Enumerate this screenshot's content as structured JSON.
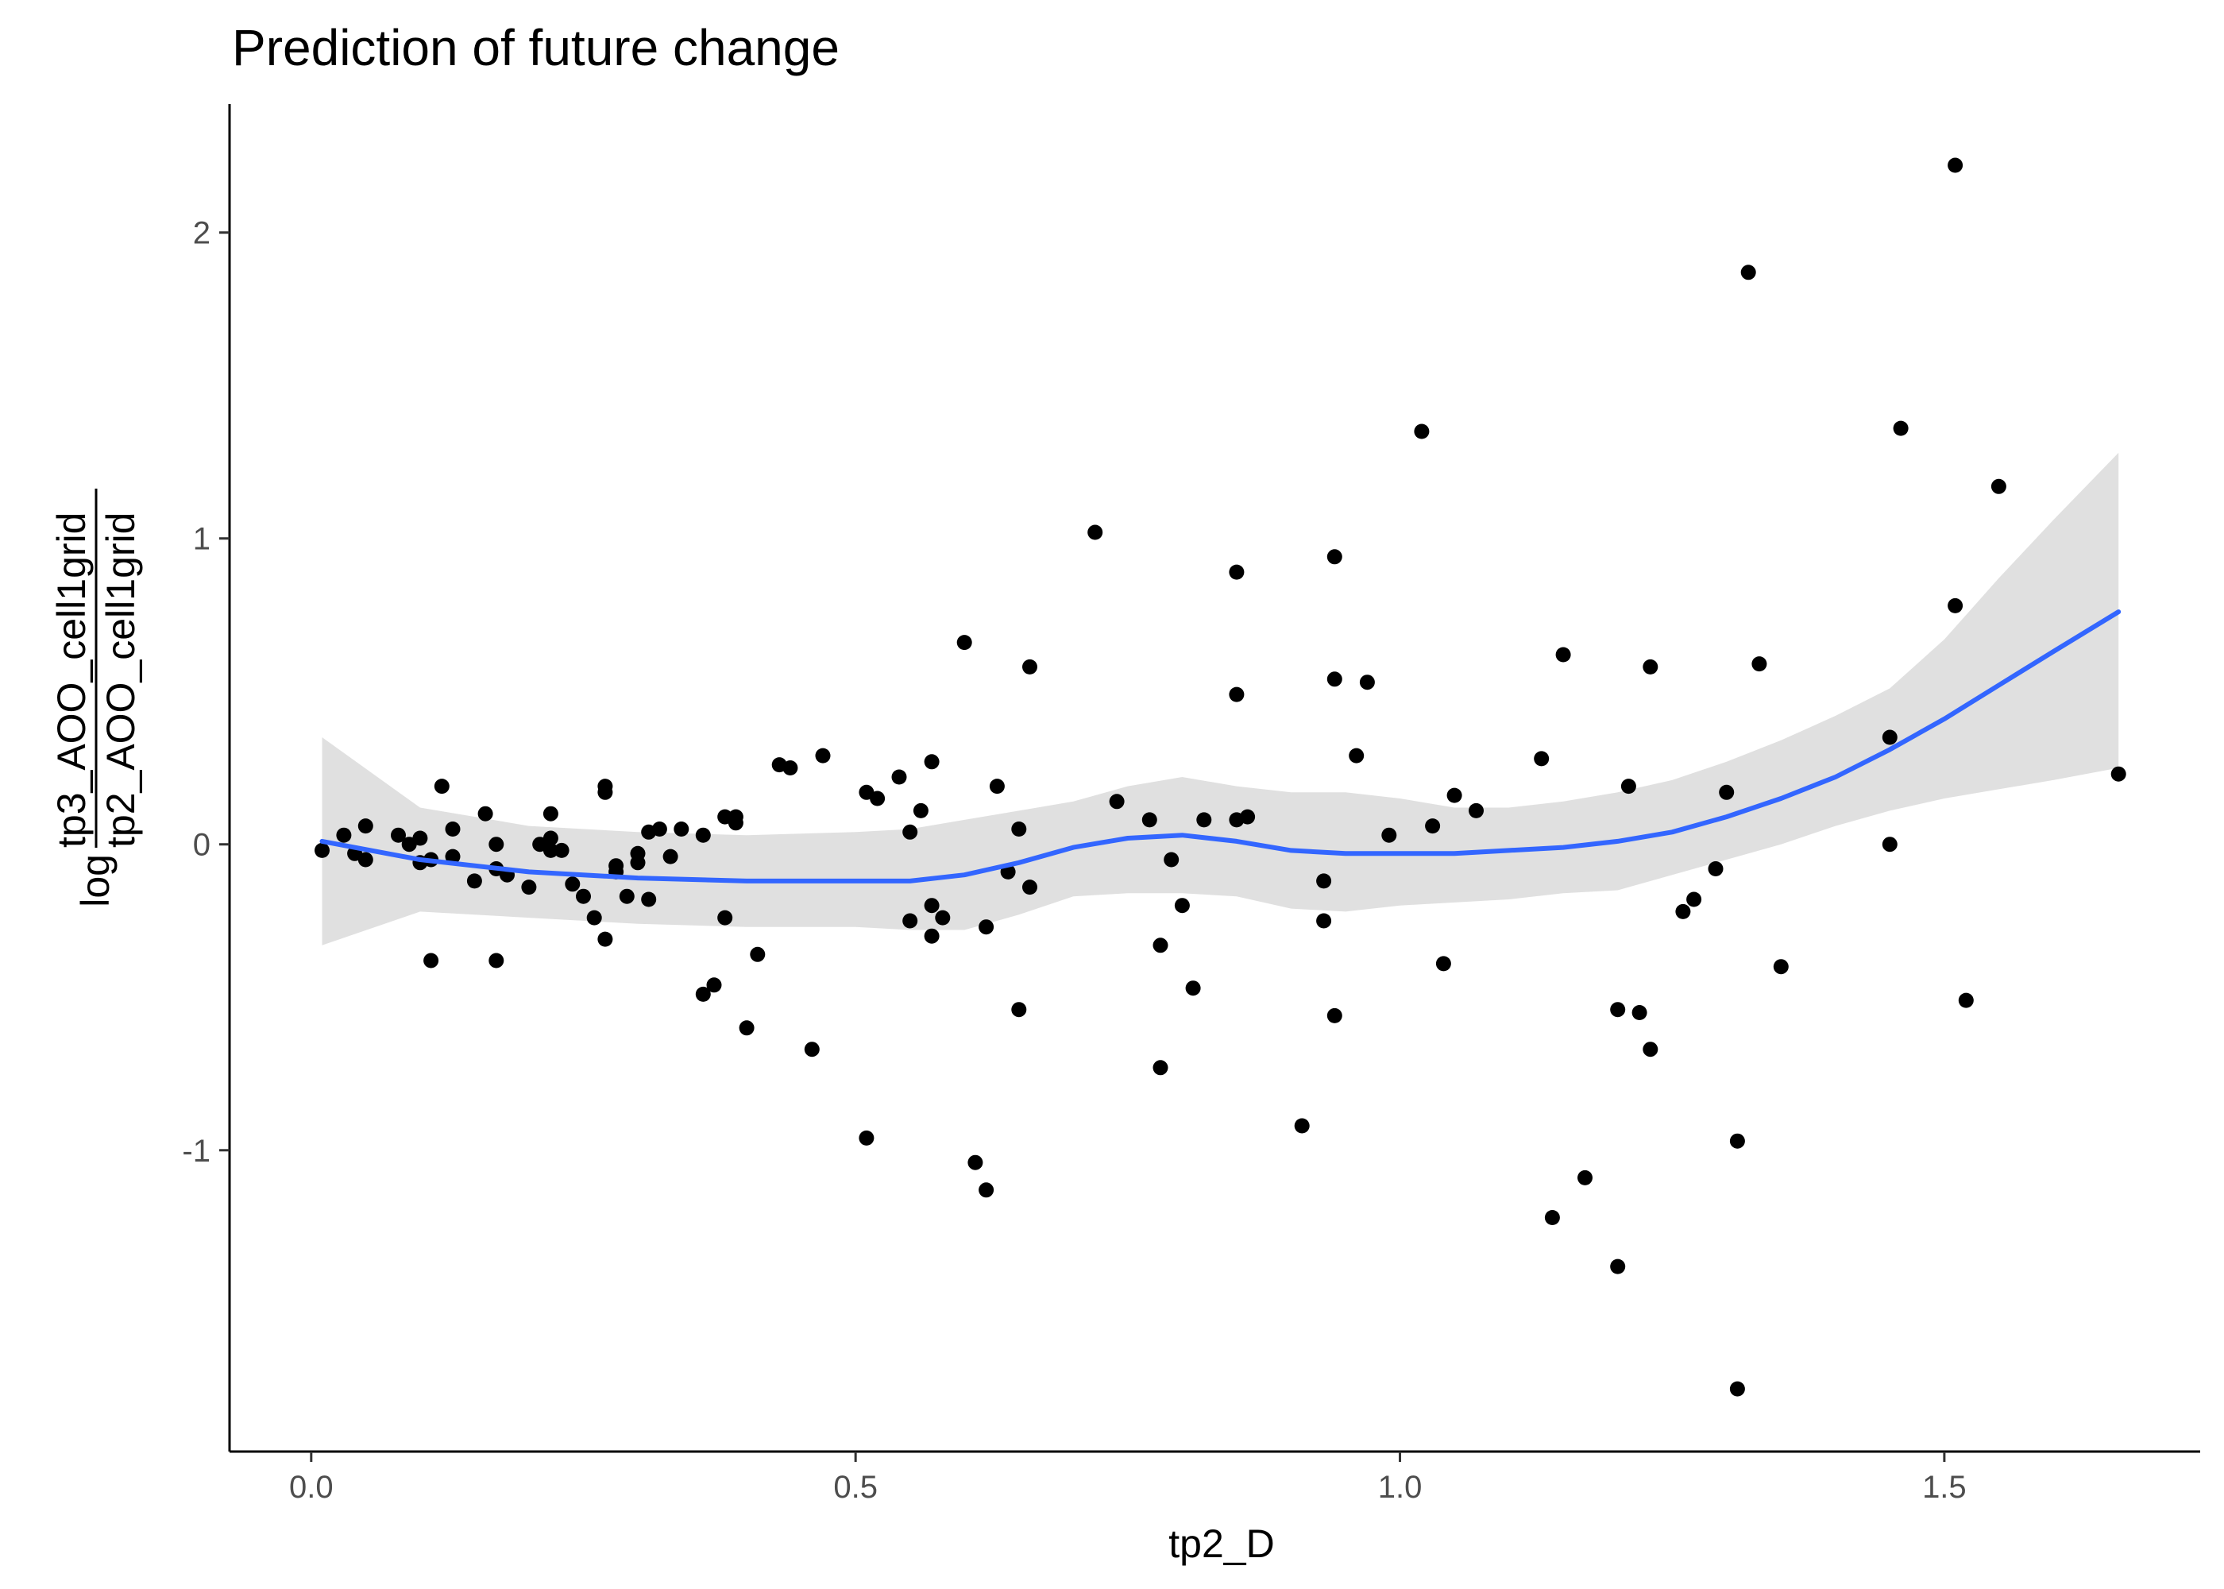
{
  "chart_data": {
    "type": "scatter",
    "title": "Prediction of future change",
    "xlabel": "tp2_D",
    "ylabel": {
      "prefix": "log",
      "numerator": "tp3_AOO_cell1grid",
      "denominator": "tp2_AOO_cell1grid"
    },
    "xlim": [
      -0.075,
      1.735
    ],
    "ylim": [
      -1.985,
      2.42
    ],
    "x_ticks": [
      0.0,
      0.5,
      1.0,
      1.5
    ],
    "x_tick_labels": [
      "0.0",
      "0.5",
      "1.0",
      "1.5"
    ],
    "y_ticks": [
      -1,
      0,
      1,
      2
    ],
    "y_tick_labels": [
      "-1",
      "0",
      "1",
      "2"
    ],
    "grid": false,
    "legend": "none",
    "colors": {
      "points": "#000000",
      "smooth_line": "#3366ff",
      "confidence_band": "#cccccc",
      "axis": "#000000",
      "tick_label": "#4d4d4d"
    },
    "points": [
      [
        0.01,
        -0.02
      ],
      [
        0.03,
        0.03
      ],
      [
        0.04,
        -0.03
      ],
      [
        0.05,
        0.06
      ],
      [
        0.05,
        -0.05
      ],
      [
        0.08,
        0.03
      ],
      [
        0.09,
        0.0
      ],
      [
        0.1,
        -0.06
      ],
      [
        0.1,
        0.02
      ],
      [
        0.11,
        -0.05
      ],
      [
        0.11,
        -0.38
      ],
      [
        0.12,
        0.19
      ],
      [
        0.13,
        -0.04
      ],
      [
        0.13,
        0.05
      ],
      [
        0.15,
        -0.12
      ],
      [
        0.16,
        0.1
      ],
      [
        0.17,
        -0.08
      ],
      [
        0.17,
        0.0
      ],
      [
        0.17,
        -0.38
      ],
      [
        0.18,
        -0.1
      ],
      [
        0.2,
        -0.14
      ],
      [
        0.21,
        0.0
      ],
      [
        0.22,
        -0.02
      ],
      [
        0.22,
        0.02
      ],
      [
        0.22,
        0.1
      ],
      [
        0.23,
        -0.02
      ],
      [
        0.24,
        -0.13
      ],
      [
        0.25,
        -0.17
      ],
      [
        0.26,
        -0.24
      ],
      [
        0.27,
        0.17
      ],
      [
        0.27,
        0.19
      ],
      [
        0.27,
        -0.31
      ],
      [
        0.28,
        -0.09
      ],
      [
        0.28,
        -0.07
      ],
      [
        0.29,
        -0.17
      ],
      [
        0.3,
        -0.06
      ],
      [
        0.3,
        -0.03
      ],
      [
        0.31,
        0.04
      ],
      [
        0.31,
        -0.18
      ],
      [
        0.32,
        0.05
      ],
      [
        0.33,
        -0.04
      ],
      [
        0.34,
        0.05
      ],
      [
        0.36,
        0.03
      ],
      [
        0.36,
        -0.49
      ],
      [
        0.37,
        -0.46
      ],
      [
        0.38,
        -0.24
      ],
      [
        0.38,
        0.09
      ],
      [
        0.39,
        0.07
      ],
      [
        0.39,
        0.09
      ],
      [
        0.4,
        -0.6
      ],
      [
        0.41,
        -0.36
      ],
      [
        0.43,
        0.26
      ],
      [
        0.44,
        0.25
      ],
      [
        0.46,
        -0.67
      ],
      [
        0.47,
        0.29
      ],
      [
        0.51,
        0.17
      ],
      [
        0.51,
        -0.96
      ],
      [
        0.52,
        0.15
      ],
      [
        0.54,
        0.22
      ],
      [
        0.55,
        -0.25
      ],
      [
        0.55,
        0.04
      ],
      [
        0.56,
        0.11
      ],
      [
        0.57,
        -0.3
      ],
      [
        0.57,
        0.27
      ],
      [
        0.57,
        -0.2
      ],
      [
        0.58,
        -0.24
      ],
      [
        0.6,
        0.66
      ],
      [
        0.61,
        -1.04
      ],
      [
        0.62,
        -0.27
      ],
      [
        0.62,
        -1.13
      ],
      [
        0.63,
        0.19
      ],
      [
        0.64,
        -0.09
      ],
      [
        0.65,
        -0.54
      ],
      [
        0.65,
        0.05
      ],
      [
        0.66,
        -0.14
      ],
      [
        0.66,
        0.58
      ],
      [
        0.72,
        1.02
      ],
      [
        0.74,
        0.14
      ],
      [
        0.77,
        0.08
      ],
      [
        0.78,
        -0.33
      ],
      [
        0.78,
        -0.73
      ],
      [
        0.79,
        -0.05
      ],
      [
        0.8,
        -0.2
      ],
      [
        0.81,
        -0.47
      ],
      [
        0.82,
        0.08
      ],
      [
        0.85,
        0.49
      ],
      [
        0.85,
        0.08
      ],
      [
        0.85,
        0.89
      ],
      [
        0.86,
        0.09
      ],
      [
        0.91,
        -0.92
      ],
      [
        0.93,
        -0.12
      ],
      [
        0.93,
        -0.25
      ],
      [
        0.94,
        -0.56
      ],
      [
        0.94,
        0.54
      ],
      [
        0.94,
        0.94
      ],
      [
        0.97,
        0.53
      ],
      [
        0.96,
        0.29
      ],
      [
        0.99,
        0.03
      ],
      [
        1.02,
        1.35
      ],
      [
        1.03,
        0.06
      ],
      [
        1.04,
        -0.39
      ],
      [
        1.05,
        0.16
      ],
      [
        1.07,
        0.11
      ],
      [
        1.13,
        0.28
      ],
      [
        1.14,
        -1.22
      ],
      [
        1.15,
        0.62
      ],
      [
        1.17,
        -1.09
      ],
      [
        1.2,
        -1.38
      ],
      [
        1.2,
        -0.54
      ],
      [
        1.21,
        0.19
      ],
      [
        1.22,
        -0.55
      ],
      [
        1.23,
        -0.67
      ],
      [
        1.23,
        0.58
      ],
      [
        1.26,
        -0.22
      ],
      [
        1.27,
        -0.18
      ],
      [
        1.29,
        -0.08
      ],
      [
        1.3,
        0.17
      ],
      [
        1.31,
        -0.97
      ],
      [
        1.31,
        -1.78
      ],
      [
        1.32,
        1.87
      ],
      [
        1.33,
        0.59
      ],
      [
        1.35,
        -0.4
      ],
      [
        1.45,
        0.35
      ],
      [
        1.45,
        0.0
      ],
      [
        1.46,
        1.36
      ],
      [
        1.51,
        0.78
      ],
      [
        1.51,
        2.22
      ],
      [
        1.52,
        -0.51
      ],
      [
        1.55,
        1.17
      ],
      [
        1.66,
        0.23
      ]
    ],
    "smooth": {
      "x": [
        0.01,
        0.1,
        0.2,
        0.3,
        0.4,
        0.5,
        0.55,
        0.6,
        0.65,
        0.7,
        0.75,
        0.8,
        0.85,
        0.9,
        0.95,
        1.0,
        1.05,
        1.1,
        1.15,
        1.2,
        1.25,
        1.3,
        1.35,
        1.4,
        1.45,
        1.5,
        1.55,
        1.6,
        1.66
      ],
      "y": [
        0.01,
        -0.05,
        -0.09,
        -0.11,
        -0.12,
        -0.12,
        -0.12,
        -0.1,
        -0.06,
        -0.01,
        0.02,
        0.03,
        0.01,
        -0.02,
        -0.03,
        -0.03,
        -0.03,
        -0.02,
        -0.01,
        0.01,
        0.04,
        0.09,
        0.15,
        0.22,
        0.31,
        0.41,
        0.52,
        0.63,
        0.76
      ],
      "lower": [
        -0.33,
        -0.22,
        -0.24,
        -0.26,
        -0.27,
        -0.27,
        -0.28,
        -0.28,
        -0.23,
        -0.17,
        -0.16,
        -0.16,
        -0.17,
        -0.21,
        -0.22,
        -0.2,
        -0.19,
        -0.18,
        -0.16,
        -0.15,
        -0.1,
        -0.05,
        0.0,
        0.06,
        0.11,
        0.15,
        0.18,
        0.21,
        0.25
      ],
      "upper": [
        0.35,
        0.12,
        0.06,
        0.04,
        0.03,
        0.04,
        0.05,
        0.08,
        0.11,
        0.14,
        0.19,
        0.22,
        0.19,
        0.17,
        0.17,
        0.15,
        0.12,
        0.12,
        0.14,
        0.17,
        0.21,
        0.27,
        0.34,
        0.42,
        0.51,
        0.67,
        0.87,
        1.06,
        1.28
      ]
    }
  }
}
